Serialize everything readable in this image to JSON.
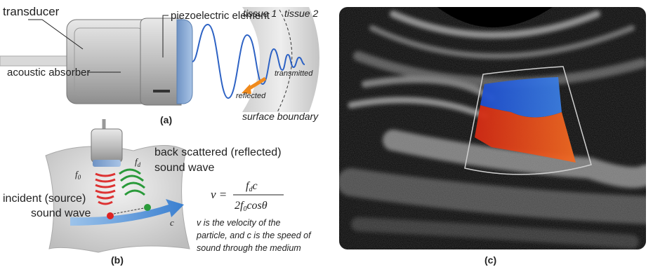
{
  "panel_a": {
    "label": "(a)",
    "transducer": "transducer",
    "piezoelectric_element": "piezoelectric element",
    "acoustic_absorber": "acoustic absorber",
    "tissue_1": "tissue 1",
    "tissue_2": "tissue 2",
    "transmitted": "transmitted",
    "reflected": "reflected",
    "surface_boundary": "surface boundary"
  },
  "panel_b": {
    "label": "(b)",
    "back_scattered": [
      "back scattered (reflected)",
      "sound wave"
    ],
    "incident": [
      "incident (source)",
      "sound wave"
    ],
    "f0": {
      "base": "f",
      "sub": "0"
    },
    "fd": {
      "base": "f",
      "sub": "d"
    },
    "c": "c",
    "formula": {
      "lhs": "v =",
      "numerator": [
        "f",
        "d",
        "c"
      ],
      "denominator": [
        "2f",
        "0",
        "cos",
        "θ"
      ]
    },
    "note": [
      "v is the velocity of the",
      "particle, and c is the speed of",
      "sound through the medium"
    ]
  },
  "panel_c": {
    "label": "(c)"
  }
}
